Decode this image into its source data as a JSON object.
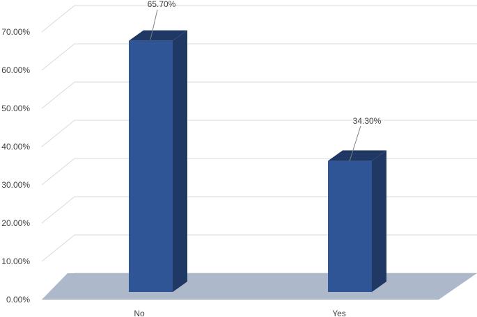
{
  "chart_data": {
    "type": "bar",
    "style": "3d-column",
    "categories": [
      "No",
      "Yes"
    ],
    "values": [
      65.7,
      34.3
    ],
    "data_labels": [
      "65.70%",
      "34.30%"
    ],
    "ylim": [
      0,
      70
    ],
    "y_ticks": [
      "0.00%",
      "10.00%",
      "20.00%",
      "30.00%",
      "40.00%",
      "50.00%",
      "60.00%",
      "70.00%"
    ],
    "grid": true,
    "legend": "none",
    "colors": {
      "bar_front": "#2F5597",
      "bar_side": "#1F3864",
      "bar_top": "#203864",
      "floor": "#ADB9CA",
      "gridline": "#D9D9D9",
      "leader_line": "#7F7F7F"
    }
  }
}
